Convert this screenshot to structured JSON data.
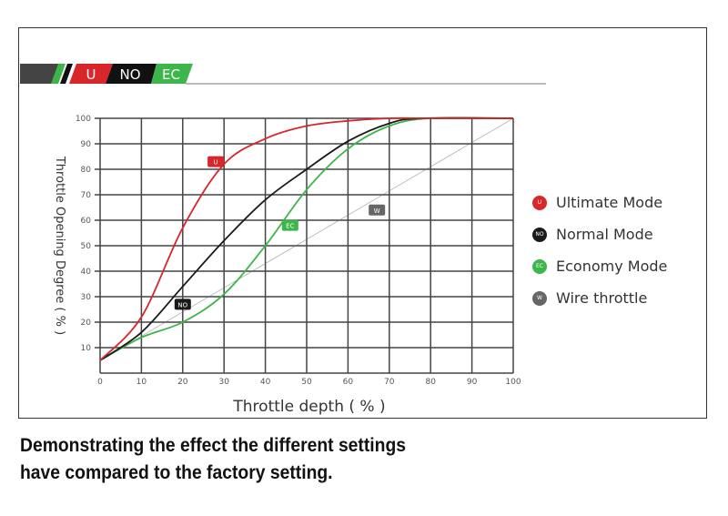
{
  "logo": {
    "labels": [
      "U",
      "NO",
      "EC"
    ]
  },
  "chart_data": {
    "type": "line",
    "xlabel": "Throttle depth ( % )",
    "ylabel": "Throttle Opening Degree ( % )",
    "xlim": [
      0,
      100
    ],
    "ylim": [
      0,
      100
    ],
    "xticks": [
      "0",
      "10",
      "20",
      "30",
      "40",
      "50",
      "60",
      "70",
      "80",
      "90",
      "100"
    ],
    "yticks": [
      "10",
      "20",
      "30",
      "40",
      "50",
      "60",
      "70",
      "80",
      "90",
      "100"
    ],
    "grid": true,
    "legend_position": "right",
    "series": [
      {
        "name": "Ultimate Mode",
        "badge": "U",
        "color": "#d9262b",
        "x": [
          0,
          10,
          20,
          30,
          40,
          50,
          60,
          70,
          80,
          100
        ],
        "y": [
          5,
          22,
          57,
          82,
          92,
          97,
          99,
          100,
          100,
          100
        ],
        "label_at": [
          28,
          83
        ]
      },
      {
        "name": "Normal Mode",
        "badge": "NO",
        "color": "#1a1a1a",
        "x": [
          0,
          10,
          20,
          30,
          40,
          50,
          60,
          70,
          78,
          100
        ],
        "y": [
          5,
          16,
          34,
          52,
          68,
          80,
          91,
          98,
          100,
          100
        ],
        "label_at": [
          20,
          27
        ]
      },
      {
        "name": "Economy Mode",
        "badge": "EC",
        "color": "#3cb54a",
        "x": [
          0,
          10,
          20,
          30,
          40,
          50,
          60,
          70,
          80,
          100
        ],
        "y": [
          5,
          14,
          20,
          31,
          50,
          72,
          88,
          97,
          100,
          100
        ],
        "label_at": [
          46,
          58
        ]
      },
      {
        "name": "Wire throttle",
        "badge": "W",
        "color": "#666666",
        "x": [
          0,
          100
        ],
        "y": [
          5,
          100
        ],
        "label_at": [
          67,
          64
        ]
      }
    ]
  },
  "caption": [
    "Demonstrating the effect the different settings",
    "have compared to the factory setting."
  ]
}
